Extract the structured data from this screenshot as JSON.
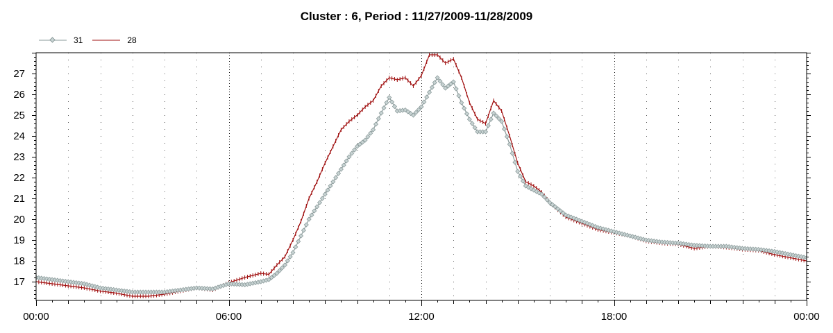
{
  "chart_data": {
    "type": "line",
    "title": "Cluster : 6, Period : 11/27/2009-11/28/2009",
    "xlabel": "",
    "ylabel": "",
    "x_ticks": [
      "00:00",
      "06:00",
      "12:00",
      "18:00",
      "00:00"
    ],
    "x_range_hours": [
      0,
      24
    ],
    "y_ticks": [
      17,
      18,
      19,
      20,
      21,
      22,
      23,
      24,
      25,
      26,
      27
    ],
    "ylim": [
      16.1,
      28.0
    ],
    "grid": "vertical dotted lines",
    "legend": "top-left",
    "series": [
      {
        "name": "31",
        "color": "#8a9a9a",
        "marker": "diamond",
        "points": [
          [
            0.0,
            17.2
          ],
          [
            0.5,
            17.1
          ],
          [
            1.0,
            17.0
          ],
          [
            1.5,
            16.9
          ],
          [
            2.0,
            16.7
          ],
          [
            2.5,
            16.6
          ],
          [
            3.0,
            16.5
          ],
          [
            3.5,
            16.5
          ],
          [
            4.0,
            16.5
          ],
          [
            4.5,
            16.6
          ],
          [
            5.0,
            16.7
          ],
          [
            5.5,
            16.65
          ],
          [
            6.0,
            16.9
          ],
          [
            6.5,
            16.85
          ],
          [
            7.0,
            17.0
          ],
          [
            7.25,
            17.1
          ],
          [
            7.5,
            17.4
          ],
          [
            7.75,
            17.8
          ],
          [
            8.0,
            18.4
          ],
          [
            8.25,
            19.2
          ],
          [
            8.5,
            20.0
          ],
          [
            8.75,
            20.6
          ],
          [
            9.0,
            21.2
          ],
          [
            9.25,
            21.8
          ],
          [
            9.5,
            22.4
          ],
          [
            9.75,
            23.0
          ],
          [
            10.0,
            23.5
          ],
          [
            10.25,
            23.8
          ],
          [
            10.5,
            24.3
          ],
          [
            10.75,
            25.1
          ],
          [
            11.0,
            25.85
          ],
          [
            11.25,
            25.2
          ],
          [
            11.5,
            25.25
          ],
          [
            11.75,
            25.0
          ],
          [
            12.0,
            25.4
          ],
          [
            12.25,
            26.1
          ],
          [
            12.5,
            26.8
          ],
          [
            12.75,
            26.3
          ],
          [
            13.0,
            26.6
          ],
          [
            13.25,
            25.6
          ],
          [
            13.5,
            24.8
          ],
          [
            13.75,
            24.2
          ],
          [
            14.0,
            24.2
          ],
          [
            14.25,
            25.1
          ],
          [
            14.5,
            24.7
          ],
          [
            14.75,
            23.6
          ],
          [
            15.0,
            22.3
          ],
          [
            15.25,
            21.6
          ],
          [
            15.5,
            21.4
          ],
          [
            15.75,
            21.2
          ],
          [
            16.0,
            20.8
          ],
          [
            16.5,
            20.2
          ],
          [
            17.0,
            19.9
          ],
          [
            17.5,
            19.6
          ],
          [
            18.0,
            19.4
          ],
          [
            18.5,
            19.2
          ],
          [
            19.0,
            19.0
          ],
          [
            19.5,
            18.9
          ],
          [
            20.0,
            18.85
          ],
          [
            20.5,
            18.75
          ],
          [
            21.0,
            18.7
          ],
          [
            21.5,
            18.7
          ],
          [
            22.0,
            18.6
          ],
          [
            22.5,
            18.55
          ],
          [
            23.0,
            18.45
          ],
          [
            23.5,
            18.3
          ],
          [
            24.0,
            18.15
          ]
        ]
      },
      {
        "name": "28",
        "color": "#a01010",
        "marker": "plus",
        "points": [
          [
            0.0,
            17.0
          ],
          [
            0.5,
            16.9
          ],
          [
            1.0,
            16.8
          ],
          [
            1.5,
            16.7
          ],
          [
            2.0,
            16.55
          ],
          [
            2.5,
            16.45
          ],
          [
            3.0,
            16.3
          ],
          [
            3.5,
            16.3
          ],
          [
            4.0,
            16.4
          ],
          [
            4.5,
            16.55
          ],
          [
            5.0,
            16.7
          ],
          [
            5.5,
            16.6
          ],
          [
            6.0,
            16.95
          ],
          [
            6.5,
            17.2
          ],
          [
            7.0,
            17.4
          ],
          [
            7.25,
            17.35
          ],
          [
            7.5,
            17.8
          ],
          [
            7.75,
            18.2
          ],
          [
            8.0,
            19.0
          ],
          [
            8.25,
            19.9
          ],
          [
            8.5,
            21.0
          ],
          [
            8.75,
            21.8
          ],
          [
            9.0,
            22.7
          ],
          [
            9.25,
            23.5
          ],
          [
            9.5,
            24.3
          ],
          [
            9.75,
            24.7
          ],
          [
            10.0,
            25.0
          ],
          [
            10.25,
            25.4
          ],
          [
            10.5,
            25.7
          ],
          [
            10.75,
            26.4
          ],
          [
            11.0,
            26.8
          ],
          [
            11.25,
            26.7
          ],
          [
            11.5,
            26.8
          ],
          [
            11.75,
            26.4
          ],
          [
            12.0,
            26.9
          ],
          [
            12.25,
            27.9
          ],
          [
            12.5,
            27.9
          ],
          [
            12.75,
            27.5
          ],
          [
            13.0,
            27.7
          ],
          [
            13.25,
            26.8
          ],
          [
            13.5,
            25.6
          ],
          [
            13.75,
            24.8
          ],
          [
            14.0,
            24.6
          ],
          [
            14.25,
            25.7
          ],
          [
            14.5,
            25.2
          ],
          [
            14.75,
            24.0
          ],
          [
            15.0,
            22.7
          ],
          [
            15.25,
            21.8
          ],
          [
            15.5,
            21.6
          ],
          [
            15.75,
            21.3
          ],
          [
            16.0,
            20.8
          ],
          [
            16.5,
            20.1
          ],
          [
            17.0,
            19.8
          ],
          [
            17.5,
            19.5
          ],
          [
            18.0,
            19.35
          ],
          [
            18.5,
            19.2
          ],
          [
            19.0,
            18.95
          ],
          [
            19.5,
            18.85
          ],
          [
            20.0,
            18.8
          ],
          [
            20.5,
            18.6
          ],
          [
            21.0,
            18.7
          ],
          [
            21.5,
            18.65
          ],
          [
            22.0,
            18.55
          ],
          [
            22.5,
            18.5
          ],
          [
            23.0,
            18.3
          ],
          [
            23.5,
            18.15
          ],
          [
            24.0,
            18.0
          ]
        ]
      }
    ]
  }
}
